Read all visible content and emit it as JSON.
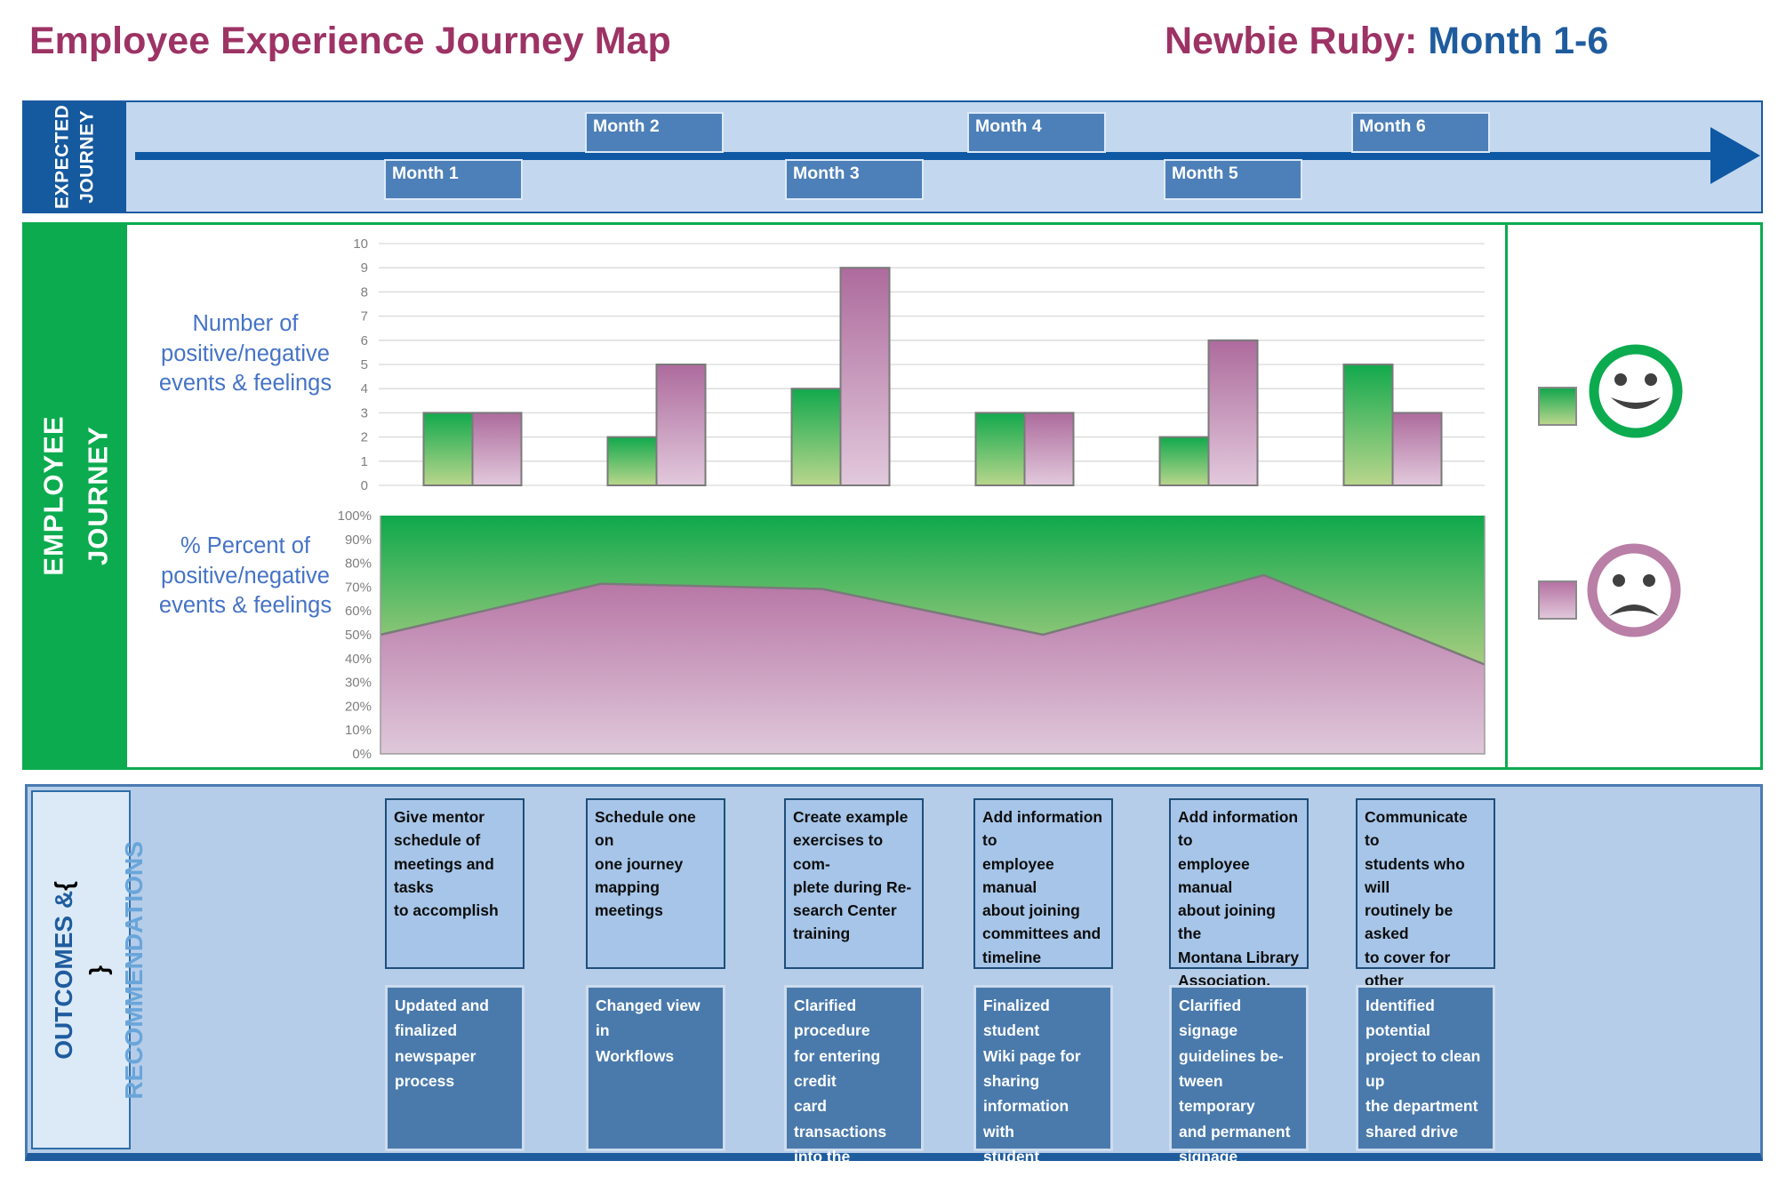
{
  "page_title": {
    "left": "Employee Experience Journey Map",
    "persona": "Newbie Ruby:",
    "range": " Month 1-6"
  },
  "colors": {
    "maroon": "#9d3365",
    "title_blue": "#1f5c9e",
    "band_bg": "#c3d8ee",
    "band_sidebar": "#15599e",
    "arrow_blue": "#0f58a4",
    "month_box_blue": "#4d80b8",
    "journey_green": "#0cab4f",
    "chart_label_blue": "#4573c6",
    "axis_text_gray": "#7f7f7f",
    "outcome_panel_bg": "#b5cde9",
    "outcome_top_box": "#a6c5e8",
    "outcome_bottom_box": "#4a7aac"
  },
  "expected_journey": {
    "sidebar_label": "EXPECTED\nJOURNEY",
    "months": [
      {
        "label": "Month 1",
        "row": "below"
      },
      {
        "label": "Month 2",
        "row": "above"
      },
      {
        "label": "Month 3",
        "row": "below"
      },
      {
        "label": "Month 4",
        "row": "above"
      },
      {
        "label": "Month 5",
        "row": "below"
      },
      {
        "label": "Month 6",
        "row": "above"
      }
    ]
  },
  "employee_journey": {
    "sidebar_label": "EMPLOYEE\nJOURNEY",
    "bar_chart_label": "Number of\npositive/negative\nevents & feelings",
    "area_chart_label": "% Percent of\npositive/negative\nevents & feelings",
    "legend": {
      "positive_icon": "smiley-face",
      "negative_icon": "frowny-face"
    }
  },
  "chart_data": [
    {
      "type": "bar",
      "title": "Number of positive/negative events & feelings",
      "categories": [
        "Month 1",
        "Month 2",
        "Month 3",
        "Month 4",
        "Month 5",
        "Month 6"
      ],
      "series": [
        {
          "name": "positive events & feelings",
          "color_top": "#12a94d",
          "color_bottom": "#b9d68c",
          "values": [
            3,
            2,
            4,
            3,
            2,
            5
          ]
        },
        {
          "name": "negative events & feelings",
          "color_top": "#ad6b9d",
          "color_bottom": "#e2c9dc",
          "values": [
            3,
            5,
            9,
            3,
            6,
            3
          ]
        }
      ],
      "ylim": [
        0,
        10
      ],
      "ytick_step": 1,
      "grid": true,
      "legend_position": "right"
    },
    {
      "type": "area",
      "title": "% Percent of positive/negative events & feelings",
      "categories": [
        "Month 1",
        "Month 2",
        "Month 3",
        "Month 4",
        "Month 5",
        "Month 6"
      ],
      "stacked": true,
      "series": [
        {
          "name": "% negative events & feelings",
          "color_top": "#b673a4",
          "color_bottom": "#dfc8da",
          "values": [
            50,
            71.4,
            69.2,
            50,
            75,
            37.5
          ]
        },
        {
          "name": "% positive events & feelings",
          "color_top": "#0fa84c",
          "color_bottom": "#a7cd80",
          "values": [
            50,
            28.6,
            30.8,
            50,
            25,
            62.5
          ]
        }
      ],
      "ylim": [
        0,
        100
      ],
      "ytick_step": 10,
      "ylabels": "percent"
    }
  ],
  "outcomes": {
    "sidebar_line1": "OUTCOMES &",
    "sidebar_line2": "RECOMMENDATIONS",
    "columns": [
      {
        "top": "Give mentor\nschedule of\nmeetings and tasks\nto accomplish",
        "bottom": "Updated and\nfinalized\nnewspaper\nprocess"
      },
      {
        "top": "Schedule one on\none journey\nmapping meetings",
        "bottom": "Changed view in\nWorkflows"
      },
      {
        "top": "Create example\nexercises to com-\nplete during Re-\nsearch Center\ntraining",
        "bottom": "Clarified procedure\nfor entering credit\ncard transactions\ninto the\nreconciliation log\nspreadsheet"
      },
      {
        "top": "Add information to\nemployee manual\nabout joining\ncommittees and\ntimeline",
        "bottom": "Finalized student\nWiki page for\nsharing\ninformation with\nstudent employees"
      },
      {
        "top": "Add information to\nemployee manual\nabout joining the\nMontana Library\nAssociation, Ameri-\ncan Library Associ-\nation, and WIRED\nlistserv",
        "bottom": "Clarified signage\nguidelines be-\ntween temporary\nand permanent\nsignage"
      },
      {
        "top": "Communicate to\nstudents who will\nroutinely be asked\nto cover for other\nstudents coming\nlate from class",
        "bottom": "Identified potential\nproject to clean up\nthe department\nshared drive"
      }
    ]
  }
}
